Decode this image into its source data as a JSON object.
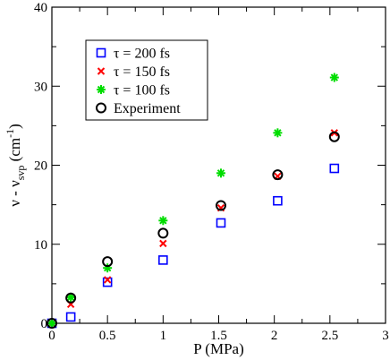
{
  "chart_data": {
    "type": "scatter",
    "title": "",
    "xlabel": "P (MPa)",
    "ylabel": {
      "text": "ν - ν",
      "subscript": "svp",
      "unit_open": " (cm",
      "unit_sup": "-1",
      "unit_close": ")"
    },
    "xlim": [
      0,
      3
    ],
    "ylim": [
      0,
      40
    ],
    "xticks": [
      0,
      0.5,
      1,
      1.5,
      2,
      2.5,
      3
    ],
    "xtick_labels": [
      "0",
      "0.5",
      "1",
      "1.5",
      "2",
      "2.5",
      "3"
    ],
    "yticks": [
      0,
      10,
      20,
      30,
      40
    ],
    "ytick_labels": [
      "0",
      "10",
      "20",
      "30",
      "40"
    ],
    "grid": false,
    "legend_position": "top-left",
    "series": [
      {
        "name": "τ = 200 fs",
        "marker": "square",
        "color": "#0000ff",
        "x": [
          0.0,
          0.17,
          0.5,
          1.0,
          1.52,
          2.03,
          2.54
        ],
        "y": [
          0.0,
          0.8,
          5.2,
          8.0,
          12.7,
          15.5,
          19.6
        ]
      },
      {
        "name": "τ = 150 fs",
        "marker": "x",
        "color": "#ff0000",
        "x": [
          0.0,
          0.17,
          0.5,
          1.0,
          1.52,
          2.03,
          2.54
        ],
        "y": [
          0.0,
          2.4,
          5.5,
          10.1,
          14.6,
          18.6,
          24.1
        ]
      },
      {
        "name": "τ = 100 fs",
        "marker": "star",
        "color": "#00dd00",
        "x": [
          0.0,
          0.17,
          0.5,
          1.0,
          1.52,
          2.03,
          2.54
        ],
        "y": [
          0.0,
          3.3,
          7.0,
          13.0,
          19.0,
          24.1,
          31.1
        ]
      },
      {
        "name": "Experiment",
        "marker": "circle",
        "color": "#000000",
        "x": [
          0.0,
          0.17,
          0.5,
          1.0,
          1.52,
          2.03,
          2.54
        ],
        "y": [
          0.0,
          3.2,
          7.8,
          11.4,
          14.9,
          18.8,
          23.6
        ]
      }
    ]
  }
}
